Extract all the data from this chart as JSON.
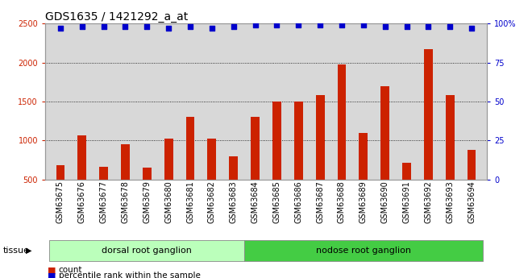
{
  "title": "GDS1635 / 1421292_a_at",
  "categories": [
    "GSM63675",
    "GSM63676",
    "GSM63677",
    "GSM63678",
    "GSM63679",
    "GSM63680",
    "GSM63681",
    "GSM63682",
    "GSM63683",
    "GSM63684",
    "GSM63685",
    "GSM63686",
    "GSM63687",
    "GSM63688",
    "GSM63689",
    "GSM63690",
    "GSM63691",
    "GSM63692",
    "GSM63693",
    "GSM63694"
  ],
  "bar_values": [
    680,
    1060,
    660,
    950,
    650,
    1020,
    1300,
    1020,
    800,
    1300,
    1500,
    1500,
    1580,
    1980,
    1100,
    1700,
    710,
    2170,
    1580,
    880
  ],
  "percentile_values": [
    97,
    98,
    98,
    98,
    98,
    97,
    98,
    97,
    98,
    99,
    99,
    99,
    99,
    99,
    99,
    98,
    98,
    98,
    98,
    97
  ],
  "bar_color": "#cc2200",
  "percentile_color": "#0000cc",
  "ylim_left": [
    500,
    2500
  ],
  "ylim_right": [
    0,
    100
  ],
  "yticks_left": [
    500,
    1000,
    1500,
    2000,
    2500
  ],
  "yticks_right": [
    0,
    25,
    50,
    75,
    100
  ],
  "groups": [
    {
      "label": "dorsal root ganglion",
      "start": 0,
      "end": 9,
      "color": "#bbffbb"
    },
    {
      "label": "nodose root ganglion",
      "start": 9,
      "end": 20,
      "color": "#44cc44"
    }
  ],
  "tissue_label": "tissue",
  "legend_count_label": "count",
  "legend_percentile_label": "percentile rank within the sample",
  "background_color": "#ffffff",
  "axis_bg_color": "#d8d8d8",
  "title_fontsize": 10,
  "tick_fontsize": 7,
  "bar_width": 0.4,
  "dot_size": 14
}
